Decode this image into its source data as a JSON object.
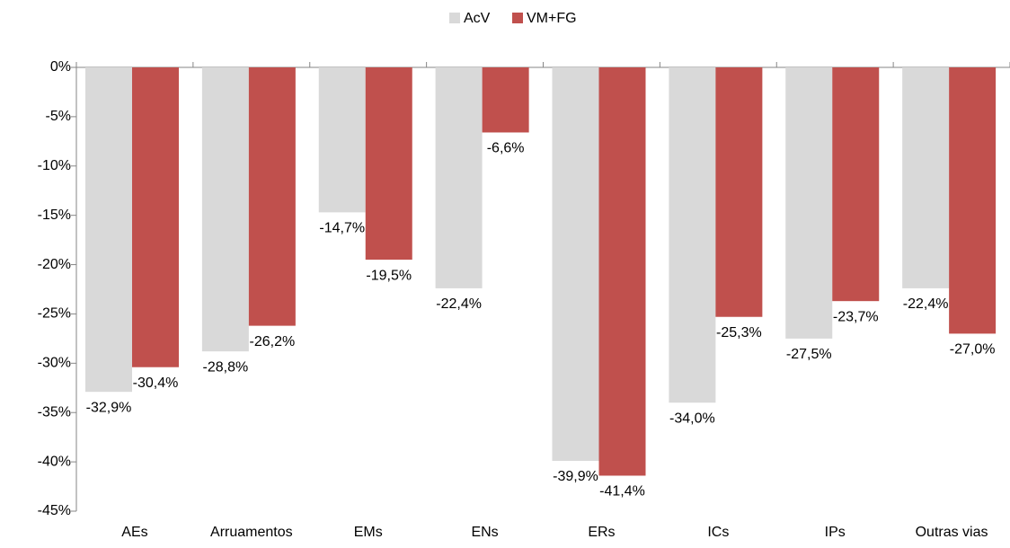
{
  "chart_data": {
    "type": "bar",
    "categories": [
      "AEs",
      "Arruamentos",
      "EMs",
      "ENs",
      "ERs",
      "ICs",
      "IPs",
      "Outras vias"
    ],
    "series": [
      {
        "name": "AcV",
        "color": "#d9d9d9",
        "values": [
          -32.9,
          -28.8,
          -14.7,
          -22.4,
          -39.9,
          -34.0,
          -27.5,
          -22.4
        ],
        "value_labels": [
          "-32,9%",
          "-28,8%",
          "-14,7%",
          "-22,4%",
          "-39,9%",
          "-34,0%",
          "-27,5%",
          "-22,4%"
        ]
      },
      {
        "name": "VM+FG",
        "color": "#c0504d",
        "values": [
          -30.4,
          -26.2,
          -19.5,
          -6.6,
          -41.4,
          -25.3,
          -23.7,
          -27.0
        ],
        "value_labels": [
          "-30,4%",
          "-26,2%",
          "-19,5%",
          "-6,6%",
          "-41,4%",
          "-25,3%",
          "-23,7%",
          "-27,0%"
        ]
      }
    ],
    "ylim": [
      -45,
      0
    ],
    "yticks": [
      {
        "value": 0,
        "label": "0%"
      },
      {
        "value": -5,
        "label": "-5%"
      },
      {
        "value": -10,
        "label": "-10%"
      },
      {
        "value": -15,
        "label": "-15%"
      },
      {
        "value": -20,
        "label": "-20%"
      },
      {
        "value": -25,
        "label": "-25%"
      },
      {
        "value": -30,
        "label": "-30%"
      },
      {
        "value": -35,
        "label": "-35%"
      },
      {
        "value": -40,
        "label": "-40%"
      },
      {
        "value": -45,
        "label": "-45%"
      }
    ],
    "legend": "top"
  }
}
